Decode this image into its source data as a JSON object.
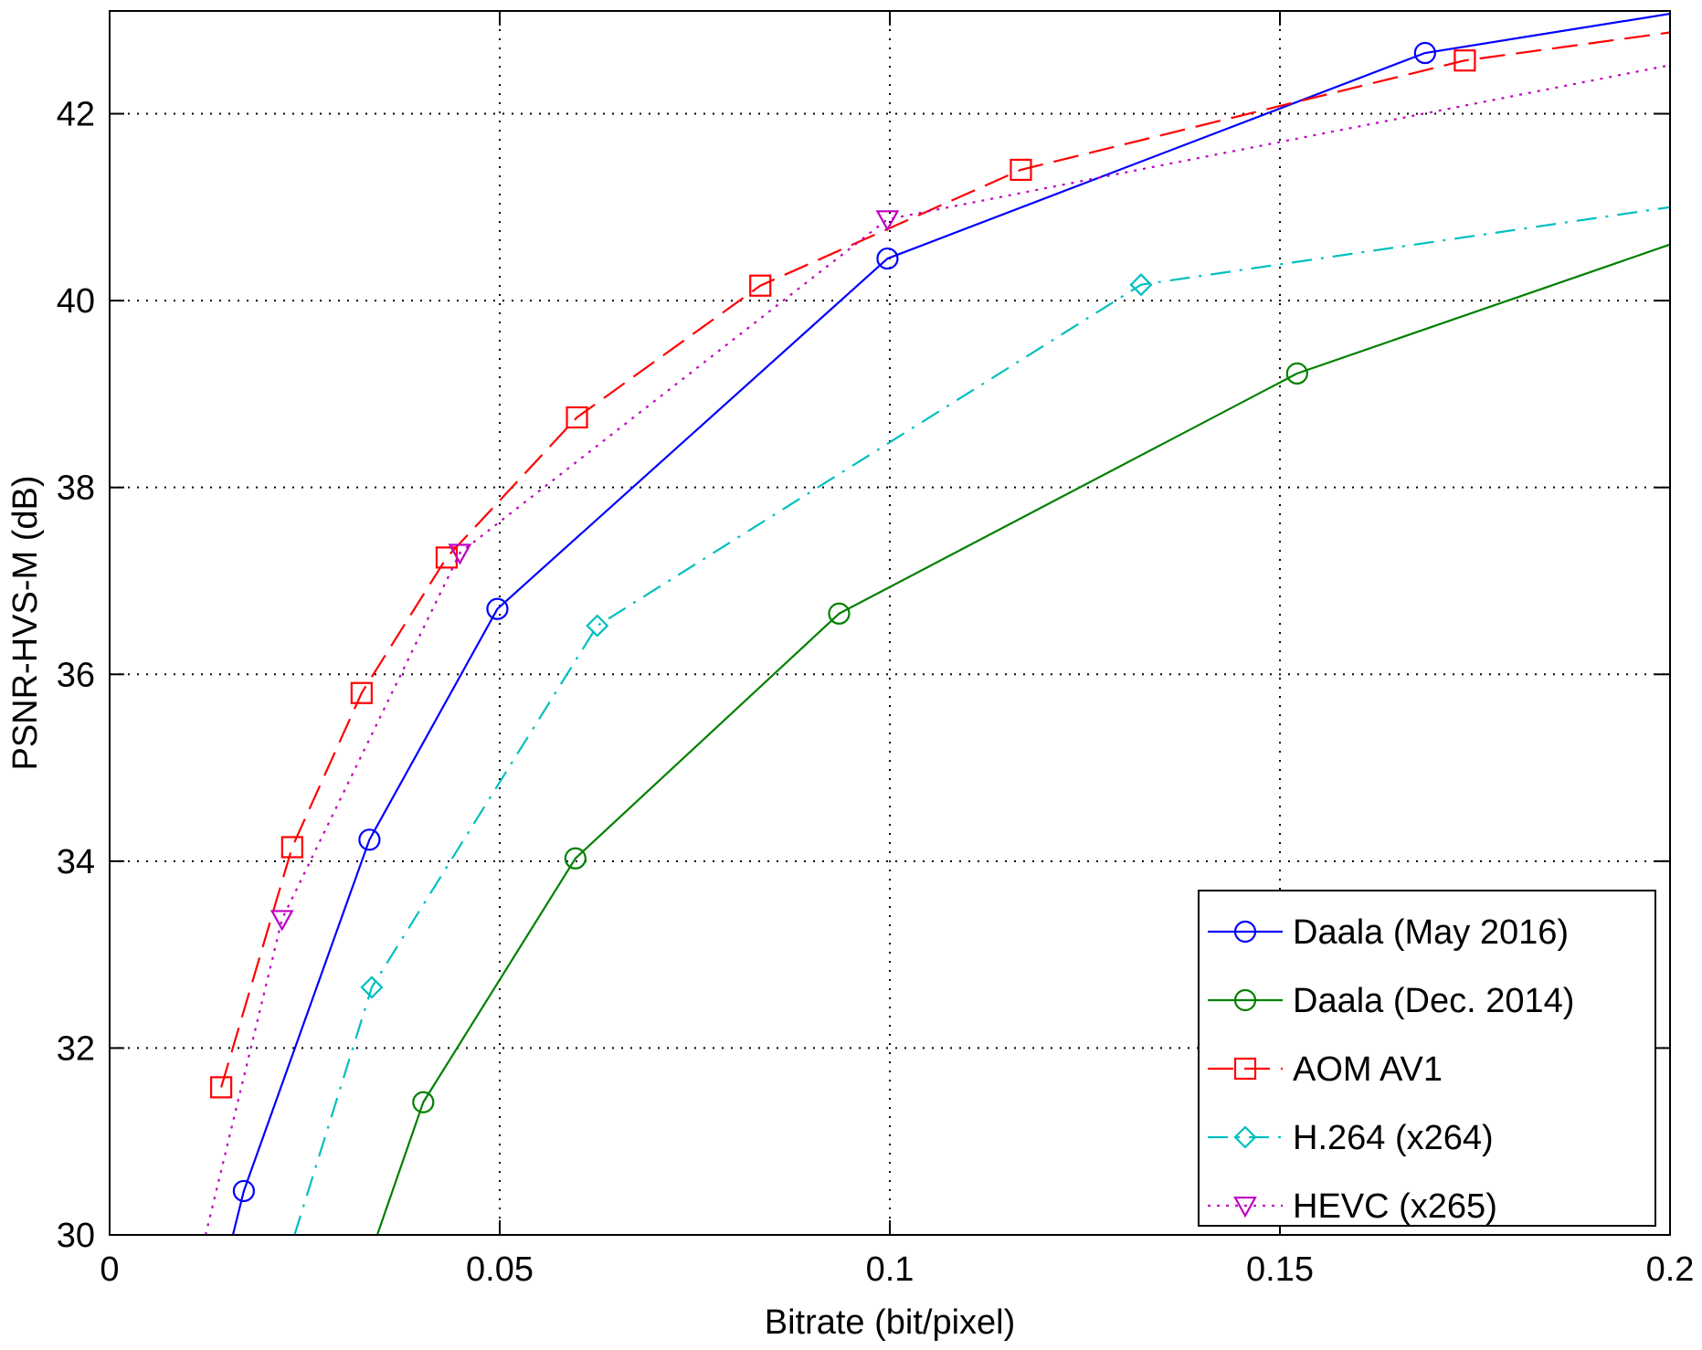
{
  "chart_data": {
    "type": "line",
    "title": "",
    "xlabel": "Bitrate (bit/pixel)",
    "ylabel": "PSNR-HVS-M (dB)",
    "xlim": [
      0,
      0.2
    ],
    "ylim": [
      30,
      43.1
    ],
    "xticks": [
      0,
      0.05,
      0.1,
      0.15,
      0.2
    ],
    "xtick_labels": [
      "0",
      "0.05",
      "0.1",
      "0.15",
      "0.2"
    ],
    "yticks": [
      30,
      32,
      34,
      36,
      38,
      40,
      42
    ],
    "ytick_labels": [
      "30",
      "32",
      "34",
      "36",
      "38",
      "40",
      "42"
    ],
    "grid": true,
    "legend_position": "bottom-right",
    "series": [
      {
        "name": "Daala (May 2016)",
        "color": "#0000ff",
        "dash": "solid",
        "marker": "circle",
        "points": [
          [
            0.0158,
            30.0
          ],
          [
            0.0172,
            30.47
          ],
          [
            0.0333,
            34.23
          ],
          [
            0.0497,
            36.7
          ],
          [
            0.0997,
            40.45
          ],
          [
            0.1686,
            42.65
          ],
          [
            0.2,
            43.07
          ]
        ],
        "markers": [
          [
            0.0172,
            30.47
          ],
          [
            0.0333,
            34.23
          ],
          [
            0.0497,
            36.7
          ],
          [
            0.0997,
            40.45
          ],
          [
            0.1686,
            42.65
          ]
        ]
      },
      {
        "name": "Daala (Dec. 2014)",
        "color": "#008000",
        "dash": "solid",
        "marker": "circle",
        "points": [
          [
            0.0343,
            30.0
          ],
          [
            0.0402,
            31.42
          ],
          [
            0.0597,
            34.03
          ],
          [
            0.0935,
            36.65
          ],
          [
            0.1522,
            39.22
          ],
          [
            0.2,
            40.6
          ]
        ],
        "markers": [
          [
            0.0402,
            31.42
          ],
          [
            0.0597,
            34.03
          ],
          [
            0.0935,
            36.65
          ],
          [
            0.1522,
            39.22
          ]
        ]
      },
      {
        "name": "AOM AV1",
        "color": "#ff0000",
        "dash": "dashed",
        "marker": "square",
        "points": [
          [
            0.0143,
            31.58
          ],
          [
            0.0234,
            34.15
          ],
          [
            0.0323,
            35.8
          ],
          [
            0.0432,
            37.25
          ],
          [
            0.0599,
            38.75
          ],
          [
            0.0834,
            40.16
          ],
          [
            0.1168,
            41.4
          ],
          [
            0.1737,
            42.57
          ],
          [
            0.2,
            42.87
          ]
        ],
        "markers": [
          [
            0.0143,
            31.58
          ],
          [
            0.0234,
            34.15
          ],
          [
            0.0323,
            35.8
          ],
          [
            0.0432,
            37.25
          ],
          [
            0.0599,
            38.75
          ],
          [
            0.0834,
            40.16
          ],
          [
            0.1168,
            41.4
          ],
          [
            0.1737,
            42.57
          ]
        ]
      },
      {
        "name": "H.264 (x264)",
        "color": "#00bfbf",
        "dash": "dashdot",
        "marker": "diamond",
        "points": [
          [
            0.0237,
            30.0
          ],
          [
            0.0336,
            32.65
          ],
          [
            0.0625,
            36.52
          ],
          [
            0.1322,
            40.17
          ],
          [
            0.2,
            41.0
          ]
        ],
        "markers": [
          [
            0.0336,
            32.65
          ],
          [
            0.0625,
            36.52
          ],
          [
            0.1322,
            40.17
          ]
        ]
      },
      {
        "name": "HEVC (x265)",
        "color": "#bf00bf",
        "dash": "dotted",
        "marker": "triangle-down",
        "points": [
          [
            0.0123,
            30.0
          ],
          [
            0.0221,
            33.38
          ],
          [
            0.0449,
            37.3
          ],
          [
            0.0997,
            40.87
          ],
          [
            0.2,
            42.52
          ]
        ],
        "markers": [
          [
            0.0221,
            33.38
          ],
          [
            0.0449,
            37.3
          ],
          [
            0.0997,
            40.87
          ]
        ]
      }
    ]
  }
}
